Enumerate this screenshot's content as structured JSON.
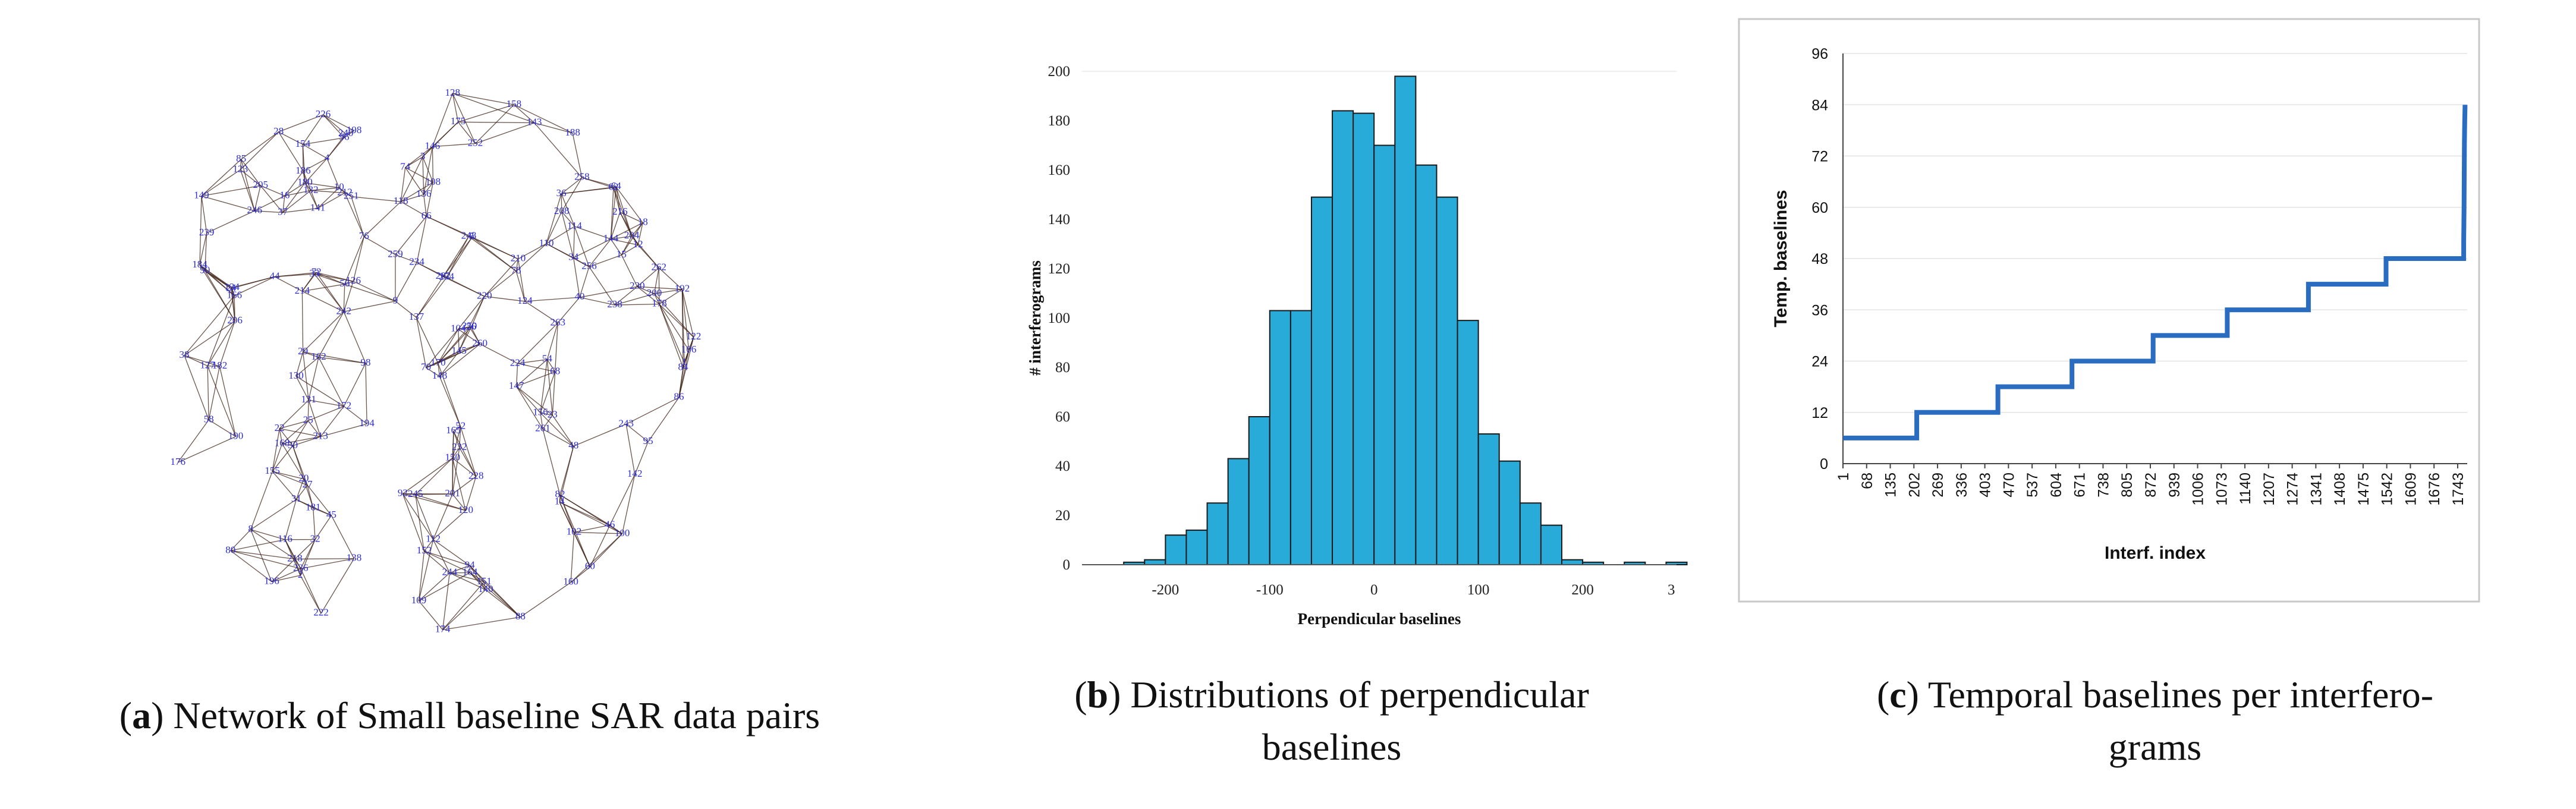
{
  "colors": {
    "network_edges": "#3b1e12",
    "network_labels": "#2b2bd8",
    "histogram_bar": "#29abd9",
    "histogram_bar_stroke": "#1a1a1a",
    "temporal_line": "#2a6cc0",
    "grid": "#e3e3e3"
  },
  "captions": {
    "a": {
      "letter": "a",
      "text": " Network of Small baseline SAR data pairs"
    },
    "b": {
      "letter": "b",
      "text_line1": " Distributions of perpendicular",
      "text_line2": "baselines"
    },
    "c": {
      "letter": "c",
      "text_line1": " Temporal baselines per interfero-",
      "text_line2": "grams"
    }
  },
  "chart_data": [
    {
      "id": "a",
      "type": "network",
      "title": "Network of Small baseline SAR data pairs",
      "node_labels": [
        "1",
        "2",
        "3",
        "4",
        "5",
        "8",
        "9",
        "10",
        "12",
        "14",
        "15",
        "16",
        "18",
        "20",
        "22",
        "23",
        "24",
        "25",
        "26",
        "27",
        "28",
        "29",
        "30",
        "31",
        "32",
        "33",
        "34",
        "36",
        "37",
        "38",
        "40",
        "44",
        "45",
        "46",
        "48",
        "52",
        "54",
        "56",
        "58",
        "60",
        "62",
        "64",
        "66",
        "68",
        "70",
        "72",
        "74",
        "76",
        "78",
        "80",
        "82",
        "84",
        "85",
        "86",
        "88",
        "90",
        "92",
        "94",
        "95",
        "96",
        "98",
        "100",
        "102",
        "104",
        "106",
        "108",
        "109",
        "110",
        "112",
        "114",
        "116",
        "118",
        "120",
        "122",
        "123",
        "124",
        "126",
        "127",
        "128",
        "130",
        "131",
        "132",
        "134",
        "136",
        "137",
        "138",
        "140",
        "141",
        "142",
        "143",
        "144",
        "145",
        "146",
        "147",
        "148",
        "149",
        "150",
        "151",
        "152",
        "154",
        "155",
        "156",
        "158",
        "160",
        "162",
        "164",
        "165",
        "166",
        "168",
        "170",
        "172",
        "174",
        "175",
        "176",
        "178",
        "180",
        "181",
        "182",
        "184",
        "186",
        "188",
        "190",
        "192",
        "194",
        "196",
        "198",
        "200",
        "201",
        "202",
        "204",
        "205",
        "206",
        "208",
        "210",
        "212",
        "213",
        "214",
        "216",
        "218",
        "220",
        "222",
        "224",
        "226",
        "228",
        "230",
        "232",
        "234",
        "236",
        "238",
        "239",
        "240",
        "242",
        "243",
        "244",
        "245",
        "246",
        "248",
        "250",
        "251",
        "252",
        "254",
        "256",
        "258",
        "259",
        "260",
        "261",
        "262",
        "263"
      ]
    },
    {
      "id": "b",
      "type": "bar",
      "title": "Distributions of perpendicular baselines",
      "xlabel": "Perpendicular baselines",
      "ylabel": "# interferograms",
      "bin_width": 20,
      "bin_starts": [
        -240,
        -220,
        -200,
        -180,
        -160,
        -140,
        -120,
        -100,
        -80,
        -60,
        -40,
        -20,
        0,
        20,
        40,
        60,
        80,
        100,
        120,
        140,
        160,
        180,
        200,
        220,
        240,
        260,
        280
      ],
      "values": [
        1,
        2,
        12,
        14,
        25,
        43,
        60,
        103,
        103,
        149,
        184,
        183,
        170,
        198,
        162,
        149,
        99,
        53,
        42,
        25,
        16,
        2,
        1,
        0,
        1,
        0,
        1
      ],
      "xticks": [
        "-200",
        "-100",
        "0",
        "100",
        "200",
        "3"
      ],
      "xlim": [
        -280,
        290
      ],
      "ylim": [
        0,
        200
      ],
      "yticks": [
        "0",
        "20",
        "40",
        "60",
        "80",
        "100",
        "120",
        "140",
        "160",
        "180",
        "200"
      ]
    },
    {
      "id": "c",
      "type": "line",
      "title": "Temporal baselines per interferograms",
      "xlabel": "Interf. index",
      "ylabel": "Temp. baselines",
      "xticks": [
        "1",
        "68",
        "135",
        "202",
        "269",
        "336",
        "403",
        "470",
        "537",
        "604",
        "671",
        "738",
        "805",
        "872",
        "939",
        "1006",
        "1073",
        "1140",
        "1207",
        "1274",
        "1341",
        "1408",
        "1475",
        "1542",
        "1609",
        "1676",
        "1743"
      ],
      "ylim": [
        0,
        96
      ],
      "yticks": [
        "0",
        "12",
        "24",
        "36",
        "48",
        "60",
        "72",
        "84",
        "96"
      ],
      "x": [
        1,
        210,
        210,
        440,
        440,
        650,
        650,
        880,
        880,
        1090,
        1090,
        1320,
        1320,
        1540,
        1540,
        1760,
        1760,
        1761,
        1762,
        1763,
        1764
      ],
      "y": [
        6,
        6,
        12,
        12,
        18,
        18,
        24,
        24,
        30,
        30,
        36,
        36,
        42,
        42,
        48,
        48,
        52,
        60,
        75,
        80,
        84
      ],
      "xmax": 1770
    }
  ]
}
